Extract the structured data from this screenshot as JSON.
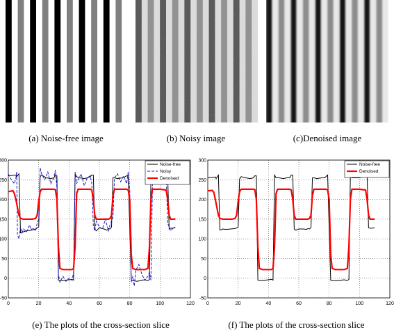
{
  "figure": {
    "captions": {
      "a": "(a) Noise-free image",
      "b": "(b) Noisy image",
      "c": "(c)Denoised image",
      "e": "(e) The plots of the cross-section slice",
      "f": "(f) The plots of the cross-section slice"
    }
  },
  "stripe_pattern": {
    "stripe_count": 10,
    "gray_levels_noise_free": [
      255,
      125,
      0,
      255,
      130,
      0,
      255,
      125,
      0,
      255
    ],
    "colors": {
      "noise_free_line": "#000000",
      "noisy_line": "#1a1acc",
      "denoised_line": "#ff0000"
    }
  },
  "chart_data": [
    {
      "type": "line",
      "panel": "e",
      "xlim": [
        0,
        120
      ],
      "ylim": [
        -50,
        300
      ],
      "xticks": [
        "0",
        "20",
        "40",
        "60",
        "80",
        "100",
        "120"
      ],
      "yticks": [
        "-50",
        "0",
        "50",
        "100",
        "150",
        "200",
        "250",
        "300"
      ],
      "grid": true,
      "legend_placement": "top-right",
      "series": [
        {
          "name": "Noise-free",
          "x": [
            0,
            5,
            5.5,
            7,
            8,
            10,
            12,
            15,
            18,
            19,
            20,
            21,
            22,
            25,
            28,
            30,
            31,
            32,
            33,
            35,
            38,
            40,
            42,
            43,
            44,
            45,
            47,
            50,
            52,
            54,
            55,
            56,
            57,
            58,
            60,
            63,
            65,
            66,
            67,
            68,
            69,
            70,
            72,
            75,
            77,
            79,
            80,
            81,
            82,
            85,
            88,
            90,
            92,
            93,
            94,
            95,
            98,
            100,
            102,
            104,
            105,
            106,
            107,
            108,
            110
          ],
          "y": [
            260,
            262,
            258,
            265,
            115,
            118,
            120,
            122,
            125,
            128,
            130,
            258,
            262,
            255,
            253,
            255,
            262,
            260,
            -5,
            -6,
            -5,
            -4,
            -3,
            -5,
            265,
            258,
            255,
            253,
            255,
            258,
            262,
            262,
            125,
            120,
            128,
            125,
            122,
            126,
            125,
            130,
            255,
            255,
            253,
            255,
            258,
            262,
            128,
            -5,
            -6,
            -8,
            -5,
            -4,
            -6,
            -3,
            260,
            258,
            255,
            255,
            257,
            262,
            262,
            125,
            127,
            127,
            128
          ]
        },
        {
          "name": "Noisy",
          "x": [
            0,
            2,
            4,
            5,
            5.5,
            6,
            7,
            8,
            9,
            10,
            12,
            14,
            15,
            16,
            18,
            19,
            20,
            21,
            22,
            24,
            26,
            28,
            30,
            31,
            32,
            33,
            34,
            36,
            38,
            40,
            42,
            43,
            44,
            45,
            46,
            48,
            50,
            52,
            54,
            55,
            56,
            57,
            58,
            60,
            62,
            64,
            66,
            67,
            68,
            69,
            70,
            72,
            74,
            76,
            78,
            79,
            80,
            81,
            82,
            83,
            84,
            86,
            88,
            90,
            92,
            93,
            94,
            95,
            96,
            98,
            100,
            102,
            104,
            105,
            106,
            107,
            108,
            110
          ],
          "y": [
            265,
            250,
            240,
            255,
            270,
            110,
            100,
            130,
            115,
            125,
            118,
            135,
            122,
            128,
            120,
            140,
            150,
            280,
            265,
            250,
            270,
            240,
            255,
            275,
            230,
            10,
            -10,
            5,
            -8,
            0,
            -5,
            15,
            270,
            240,
            250,
            265,
            235,
            255,
            260,
            240,
            135,
            120,
            145,
            130,
            125,
            150,
            120,
            135,
            145,
            155,
            255,
            265,
            245,
            260,
            240,
            270,
            220,
            -10,
            5,
            -20,
            20,
            35,
            10,
            -5,
            5,
            15,
            -5,
            240,
            255,
            260,
            250,
            245,
            265,
            140,
            130,
            120,
            125,
            130
          ]
        },
        {
          "name": "Denoised",
          "x": [
            0,
            3,
            4,
            5,
            6,
            7,
            8,
            10,
            12,
            14,
            16,
            18,
            19,
            20,
            21,
            22,
            24,
            28,
            30,
            31,
            32,
            33,
            34,
            36,
            38,
            40,
            42,
            43,
            44,
            45,
            46,
            50,
            54,
            55,
            56,
            57,
            58,
            60,
            64,
            66,
            67,
            68,
            69,
            70,
            74,
            78,
            79,
            80,
            81,
            82,
            84,
            88,
            90,
            92,
            93,
            94,
            95,
            96,
            100,
            104,
            105,
            106,
            107,
            108,
            110
          ],
          "y": [
            220,
            222,
            215,
            200,
            180,
            160,
            152,
            150,
            150,
            150,
            150,
            152,
            160,
            195,
            220,
            226,
            226,
            226,
            226,
            225,
            200,
            80,
            25,
            22,
            22,
            22,
            22,
            25,
            80,
            215,
            226,
            226,
            226,
            224,
            200,
            160,
            150,
            150,
            150,
            150,
            152,
            160,
            210,
            226,
            226,
            226,
            224,
            200,
            60,
            25,
            22,
            22,
            22,
            25,
            80,
            200,
            226,
            226,
            226,
            224,
            200,
            160,
            150,
            150,
            150
          ]
        }
      ]
    },
    {
      "type": "line",
      "panel": "f",
      "xlim": [
        0,
        120
      ],
      "ylim": [
        -50,
        300
      ],
      "xticks": [
        "0",
        "20",
        "40",
        "60",
        "80",
        "100",
        "120"
      ],
      "yticks": [
        "-50",
        "0",
        "50",
        "100",
        "150",
        "200",
        "250",
        "300"
      ],
      "grid": true,
      "legend_placement": "top-right",
      "series": [
        {
          "name": "Noise-free",
          "x": [
            0,
            5,
            5.5,
            7,
            8,
            10,
            12,
            15,
            18,
            19,
            20,
            21,
            22,
            25,
            28,
            30,
            31,
            32,
            33,
            35,
            38,
            40,
            42,
            43,
            44,
            45,
            47,
            50,
            52,
            54,
            55,
            56,
            57,
            58,
            60,
            63,
            65,
            66,
            67,
            68,
            69,
            70,
            72,
            75,
            77,
            79,
            80,
            81,
            82,
            85,
            88,
            90,
            92,
            93,
            94,
            95,
            98,
            100,
            102,
            104,
            105,
            106,
            107,
            108,
            110
          ],
          "y": [
            255,
            257,
            253,
            262,
            122,
            125,
            124,
            125,
            126,
            128,
            130,
            252,
            258,
            255,
            253,
            255,
            260,
            260,
            -5,
            -6,
            -5,
            -4,
            -3,
            -5,
            262,
            255,
            255,
            253,
            255,
            255,
            262,
            262,
            125,
            122,
            125,
            125,
            124,
            126,
            125,
            128,
            255,
            255,
            253,
            255,
            255,
            262,
            125,
            -5,
            -6,
            -6,
            -5,
            -4,
            -6,
            -3,
            258,
            255,
            255,
            255,
            257,
            262,
            262,
            128,
            127,
            127,
            128
          ]
        },
        {
          "name": "Denoised",
          "x": [
            0,
            3,
            4,
            5,
            6,
            7,
            8,
            10,
            12,
            14,
            16,
            18,
            19,
            20,
            21,
            22,
            24,
            28,
            30,
            31,
            32,
            33,
            34,
            36,
            38,
            40,
            42,
            43,
            44,
            45,
            46,
            50,
            54,
            55,
            56,
            57,
            58,
            60,
            64,
            66,
            67,
            68,
            69,
            70,
            74,
            78,
            79,
            80,
            81,
            82,
            84,
            88,
            90,
            92,
            93,
            94,
            95,
            96,
            100,
            104,
            105,
            106,
            107,
            108,
            110
          ],
          "y": [
            222,
            223,
            218,
            200,
            180,
            160,
            152,
            150,
            150,
            150,
            150,
            152,
            160,
            195,
            220,
            226,
            226,
            226,
            226,
            225,
            200,
            80,
            25,
            22,
            22,
            22,
            22,
            25,
            80,
            215,
            226,
            226,
            226,
            224,
            200,
            160,
            150,
            150,
            150,
            150,
            152,
            160,
            210,
            226,
            226,
            226,
            224,
            200,
            60,
            25,
            22,
            22,
            22,
            25,
            80,
            200,
            226,
            226,
            226,
            224,
            200,
            160,
            150,
            150,
            150
          ]
        }
      ]
    }
  ]
}
